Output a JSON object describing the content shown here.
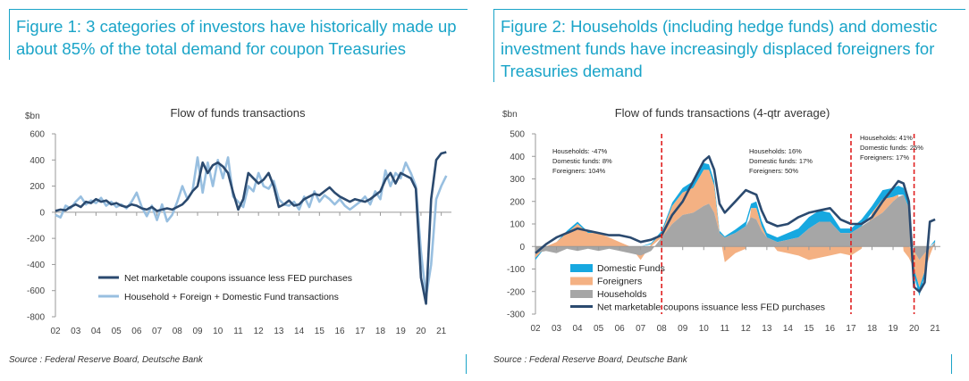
{
  "source": "Source : Federal Reserve Board, Deutsche Bank",
  "colors": {
    "accent": "#1aa4c8",
    "net_issuance": "#2b4a6f",
    "household_foreign_domestic": "#98bfe0",
    "domestic_funds": "#17a8e0",
    "foreigners": "#f4b183",
    "households": "#a6a6a6",
    "redline": "#e02020"
  },
  "chart_data": [
    {
      "type": "line",
      "figure_title": "Figure 1: 3 categories of investors have historically made up about 85% of the total demand for coupon Treasuries",
      "title": "Flow of funds transactions",
      "ylabel": "$bn",
      "xlabel": "",
      "ylim": [
        -800,
        600
      ],
      "yticks": [
        "600",
        "400",
        "200",
        "0",
        "-200",
        "-400",
        "-600",
        "-800"
      ],
      "xticks": [
        "02",
        "03",
        "04",
        "05",
        "06",
        "07",
        "08",
        "09",
        "10",
        "11",
        "12",
        "13",
        "14",
        "15",
        "16",
        "17",
        "18",
        "19",
        "20",
        "21"
      ],
      "legend": [
        "Net marketable coupons issuance less FED purchases",
        "Household + Foreign + Domestic Fund transactions"
      ],
      "series": [
        {
          "name": "Net marketable coupons issuance less FED purchases",
          "x": [
            2.0,
            2.25,
            2.5,
            2.75,
            3.0,
            3.25,
            3.5,
            3.75,
            4.0,
            4.25,
            4.5,
            4.75,
            5.0,
            5.25,
            5.5,
            5.75,
            6.0,
            6.25,
            6.5,
            6.75,
            7.0,
            7.25,
            7.5,
            7.75,
            8.0,
            8.25,
            8.5,
            8.75,
            9.0,
            9.25,
            9.5,
            9.75,
            10.0,
            10.25,
            10.5,
            10.75,
            11.0,
            11.25,
            11.5,
            11.75,
            12.0,
            12.25,
            12.5,
            12.75,
            13.0,
            13.25,
            13.5,
            13.75,
            14.0,
            14.25,
            14.5,
            14.75,
            15.0,
            15.25,
            15.5,
            15.75,
            16.0,
            16.25,
            16.5,
            16.75,
            17.0,
            17.25,
            17.5,
            17.75,
            18.0,
            18.25,
            18.5,
            18.75,
            19.0,
            19.25,
            19.5,
            19.75,
            20.0,
            20.25,
            20.5,
            20.75,
            21.0,
            21.25
          ],
          "y": [
            10,
            20,
            15,
            40,
            60,
            40,
            80,
            70,
            100,
            80,
            90,
            60,
            70,
            50,
            40,
            60,
            50,
            30,
            20,
            40,
            10,
            20,
            30,
            20,
            40,
            60,
            100,
            160,
            200,
            380,
            300,
            360,
            380,
            350,
            300,
            150,
            20,
            100,
            300,
            260,
            220,
            250,
            300,
            200,
            40,
            60,
            90,
            50,
            60,
            100,
            120,
            140,
            130,
            160,
            190,
            150,
            120,
            100,
            80,
            100,
            90,
            80,
            100,
            130,
            160,
            250,
            300,
            220,
            300,
            280,
            260,
            180,
            -500,
            -700,
            100,
            400,
            450,
            460
          ]
        },
        {
          "name": "Household + Foreign + Domestic Fund transactions",
          "x": [
            2.0,
            2.25,
            2.5,
            2.75,
            3.0,
            3.25,
            3.5,
            3.75,
            4.0,
            4.25,
            4.5,
            4.75,
            5.0,
            5.25,
            5.5,
            5.75,
            6.0,
            6.25,
            6.5,
            6.75,
            7.0,
            7.25,
            7.5,
            7.75,
            8.0,
            8.25,
            8.5,
            8.75,
            9.0,
            9.25,
            9.5,
            9.75,
            10.0,
            10.25,
            10.5,
            10.75,
            11.0,
            11.25,
            11.5,
            11.75,
            12.0,
            12.25,
            12.5,
            12.75,
            13.0,
            13.25,
            13.5,
            13.75,
            14.0,
            14.25,
            14.5,
            14.75,
            15.0,
            15.25,
            15.5,
            15.75,
            16.0,
            16.25,
            16.5,
            16.75,
            17.0,
            17.25,
            17.5,
            17.75,
            18.0,
            18.25,
            18.5,
            18.75,
            19.0,
            19.25,
            19.5,
            19.75,
            20.0,
            20.25,
            20.5,
            20.75,
            21.0,
            21.25
          ],
          "y": [
            -20,
            -40,
            50,
            30,
            80,
            120,
            60,
            90,
            70,
            110,
            50,
            80,
            40,
            60,
            30,
            80,
            150,
            40,
            -30,
            50,
            -60,
            60,
            -70,
            -20,
            80,
            200,
            100,
            160,
            420,
            150,
            380,
            200,
            400,
            260,
            420,
            120,
            80,
            40,
            200,
            160,
            300,
            200,
            180,
            240,
            100,
            60,
            50,
            80,
            20,
            120,
            40,
            160,
            80,
            130,
            100,
            60,
            100,
            50,
            20,
            50,
            80,
            120,
            60,
            160,
            100,
            320,
            200,
            300,
            260,
            380,
            300,
            200,
            -300,
            -650,
            -400,
            100,
            200,
            280
          ]
        }
      ]
    },
    {
      "type": "area",
      "figure_title": "Figure 2: Households (including hedge funds) and domestic investment funds have increasingly displaced foreigners for Treasuries demand",
      "title": "Flow of funds transactions (4-qtr average)",
      "ylabel": "$bn",
      "xlabel": "",
      "ylim": [
        -300,
        500
      ],
      "yticks": [
        "500",
        "400",
        "300",
        "200",
        "100",
        "0",
        "-100",
        "-200",
        "-300"
      ],
      "xticks": [
        "02",
        "03",
        "04",
        "05",
        "06",
        "07",
        "08",
        "09",
        "10",
        "11",
        "12",
        "13",
        "14",
        "15",
        "16",
        "17",
        "18",
        "19",
        "20",
        "21"
      ],
      "legend": [
        "Domestic Funds",
        "Foreigners",
        "Households",
        "Net marketable coupons issuance less FED purchases"
      ],
      "annotations": [
        {
          "lines": [
            "Households: -47%",
            "Domestic funds: 8%",
            "Foreigners: 104%"
          ]
        },
        {
          "lines": [
            "Households: 16%",
            "Domestic funds: 17%",
            "Foreigners: 50%"
          ]
        },
        {
          "lines": [
            "Households: 41%",
            "Domestic funds: 25%",
            "Foreigners: 17%"
          ]
        }
      ],
      "vlines_x": [
        8.0,
        17.0,
        20.0
      ],
      "x": [
        2.0,
        2.5,
        3.0,
        3.5,
        4.0,
        4.5,
        5.0,
        5.5,
        6.0,
        6.5,
        7.0,
        7.5,
        8.0,
        8.5,
        9.0,
        9.5,
        10.0,
        10.25,
        10.5,
        10.75,
        11.0,
        11.5,
        12.0,
        12.25,
        12.5,
        12.75,
        13.0,
        13.5,
        14.0,
        14.5,
        15.0,
        15.5,
        16.0,
        16.5,
        17.0,
        17.5,
        18.0,
        18.5,
        19.0,
        19.25,
        19.5,
        19.75,
        20.0,
        20.25,
        20.5,
        20.75,
        21.0
      ],
      "households": [
        -30,
        -20,
        -30,
        -10,
        -20,
        -10,
        -20,
        -10,
        -20,
        -30,
        -40,
        -20,
        40,
        100,
        140,
        150,
        180,
        190,
        150,
        60,
        40,
        60,
        90,
        130,
        120,
        70,
        40,
        20,
        30,
        40,
        80,
        110,
        110,
        60,
        60,
        90,
        120,
        150,
        200,
        220,
        230,
        170,
        -20,
        -60,
        -30,
        -10,
        20
      ],
      "foreigners": [
        -20,
        0,
        20,
        60,
        100,
        60,
        60,
        40,
        20,
        0,
        -20,
        10,
        20,
        80,
        100,
        110,
        160,
        150,
        120,
        0,
        -70,
        -30,
        -10,
        40,
        50,
        20,
        0,
        -20,
        -30,
        -40,
        -60,
        -50,
        -40,
        -30,
        -40,
        -10,
        30,
        60,
        20,
        10,
        -20,
        -50,
        -80,
        -120,
        -80,
        -30,
        0
      ],
      "domestic_funds": [
        -10,
        0,
        0,
        10,
        10,
        5,
        0,
        0,
        0,
        0,
        0,
        5,
        10,
        15,
        20,
        30,
        30,
        25,
        20,
        10,
        5,
        15,
        20,
        20,
        30,
        25,
        20,
        20,
        30,
        40,
        50,
        50,
        40,
        20,
        20,
        30,
        30,
        40,
        40,
        40,
        30,
        20,
        -30,
        -40,
        -20,
        0,
        10
      ],
      "net_issuance": [
        -30,
        10,
        40,
        60,
        80,
        70,
        60,
        50,
        50,
        40,
        20,
        30,
        50,
        140,
        200,
        290,
        380,
        400,
        340,
        190,
        150,
        200,
        250,
        240,
        230,
        160,
        110,
        90,
        100,
        130,
        150,
        160,
        170,
        120,
        100,
        100,
        130,
        200,
        260,
        290,
        280,
        200,
        -180,
        -200,
        -160,
        110,
        120
      ]
    }
  ]
}
